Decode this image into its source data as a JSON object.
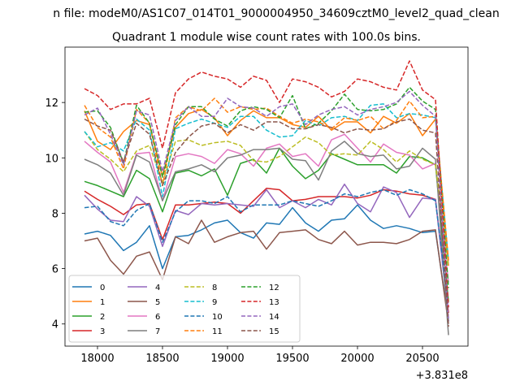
{
  "chart_data": {
    "type": "line",
    "suptitle": "n file: modeM0/AS1C07_014T01_9000004950_34609cztM0_level2_quad_clean",
    "title": "Quadrant 1 module wise count rates with 100.0s bins.",
    "xlabel": "",
    "ylabel": "",
    "x_offset_label": "+3.831e8",
    "xlim": [
      17750,
      20850
    ],
    "ylim": [
      3.2,
      14.0
    ],
    "xticks": [
      18000,
      18500,
      19000,
      19500,
      20000,
      20500
    ],
    "yticks": [
      4,
      6,
      8,
      10,
      12
    ],
    "legend_position": "lower-left",
    "legend_columns": 4,
    "x": [
      17900,
      18000,
      18100,
      18200,
      18300,
      18400,
      18500,
      18600,
      18700,
      18800,
      18900,
      19000,
      19100,
      19200,
      19300,
      19400,
      19500,
      19600,
      19700,
      19800,
      19900,
      20000,
      20100,
      20200,
      20300,
      20400,
      20500,
      20600,
      20700
    ],
    "series": [
      {
        "name": "0",
        "color": "#1f77b4",
        "dash": "solid",
        "values": [
          7.25,
          7.35,
          7.2,
          6.65,
          6.95,
          7.55,
          6.0,
          7.15,
          7.2,
          7.4,
          7.65,
          7.75,
          7.3,
          7.1,
          7.65,
          7.6,
          8.2,
          7.65,
          7.35,
          7.75,
          7.8,
          8.3,
          7.75,
          7.45,
          7.55,
          7.45,
          7.3,
          7.35,
          4.1
        ]
      },
      {
        "name": "1",
        "color": "#ff7f0e",
        "dash": "solid",
        "values": [
          11.7,
          10.6,
          10.3,
          10.95,
          11.35,
          11.2,
          9.35,
          11.1,
          11.6,
          11.75,
          11.45,
          10.8,
          11.35,
          11.7,
          11.45,
          11.45,
          11.2,
          11.1,
          11.5,
          11.0,
          11.3,
          11.3,
          10.9,
          11.5,
          11.25,
          11.6,
          10.8,
          11.4,
          6.1
        ]
      },
      {
        "name": "2",
        "color": "#2ca02c",
        "dash": "solid",
        "values": [
          9.15,
          9.0,
          8.8,
          8.6,
          9.55,
          9.25,
          8.05,
          9.45,
          9.55,
          9.35,
          9.6,
          8.65,
          9.8,
          9.95,
          9.45,
          10.35,
          9.7,
          9.25,
          9.55,
          10.15,
          9.95,
          9.75,
          9.75,
          9.75,
          9.45,
          10.05,
          10.0,
          9.75,
          4.8
        ]
      },
      {
        "name": "3",
        "color": "#d62728",
        "dash": "solid",
        "values": [
          8.8,
          8.5,
          8.25,
          7.95,
          8.3,
          8.35,
          7.05,
          8.3,
          8.3,
          8.35,
          8.4,
          8.35,
          8.0,
          8.45,
          8.9,
          8.85,
          8.45,
          8.5,
          8.6,
          8.6,
          8.6,
          8.55,
          8.65,
          8.85,
          8.8,
          8.7,
          8.65,
          8.5,
          4.4
        ]
      },
      {
        "name": "4",
        "color": "#9467bd",
        "dash": "solid",
        "values": [
          8.65,
          8.15,
          7.75,
          7.7,
          8.6,
          8.25,
          6.8,
          8.1,
          7.95,
          8.35,
          8.3,
          8.35,
          8.3,
          8.25,
          8.85,
          8.2,
          8.45,
          8.2,
          8.5,
          8.3,
          9.05,
          8.35,
          8.05,
          8.95,
          8.75,
          7.85,
          8.55,
          8.5,
          4.2
        ]
      },
      {
        "name": "5",
        "color": "#8c564b",
        "dash": "solid",
        "values": [
          7.0,
          7.1,
          6.3,
          5.8,
          6.45,
          6.6,
          5.6,
          7.15,
          6.9,
          7.75,
          6.95,
          7.15,
          7.3,
          7.35,
          6.7,
          7.3,
          7.35,
          7.4,
          7.05,
          6.9,
          7.35,
          6.85,
          6.95,
          6.95,
          6.9,
          7.05,
          7.35,
          7.4,
          4.0
        ]
      },
      {
        "name": "6",
        "color": "#e377c2",
        "dash": "solid",
        "values": [
          10.6,
          10.2,
          9.85,
          8.75,
          10.15,
          10.2,
          8.45,
          10.05,
          10.15,
          10.05,
          9.8,
          10.3,
          10.15,
          9.7,
          10.35,
          10.5,
          10.05,
          10.15,
          9.7,
          10.65,
          10.85,
          10.35,
          9.85,
          10.5,
          10.2,
          10.1,
          9.6,
          9.8,
          5.5
        ]
      },
      {
        "name": "7",
        "color": "#7f7f7f",
        "dash": "solid",
        "values": [
          9.95,
          9.75,
          9.45,
          8.65,
          10.1,
          9.85,
          8.45,
          9.5,
          9.6,
          9.75,
          9.5,
          10.0,
          10.1,
          10.3,
          10.3,
          10.35,
          9.95,
          9.9,
          9.2,
          10.25,
          10.6,
          10.15,
          10.05,
          10.1,
          9.6,
          9.7,
          10.35,
          9.95,
          3.6
        ]
      },
      {
        "name": "8",
        "color": "#bcbd22",
        "dash": "dashed",
        "values": [
          10.95,
          10.3,
          9.95,
          9.5,
          10.25,
          10.45,
          9.1,
          10.6,
          10.65,
          10.45,
          10.55,
          10.6,
          10.45,
          9.9,
          9.85,
          10.05,
          10.4,
          10.75,
          10.55,
          10.1,
          10.15,
          10.1,
          10.6,
          10.3,
          9.85,
          10.25,
          9.95,
          9.75,
          6.1
        ]
      },
      {
        "name": "9",
        "color": "#17becf",
        "dash": "dashed",
        "values": [
          10.95,
          10.4,
          10.55,
          10.25,
          11.4,
          11.0,
          8.6,
          11.05,
          11.25,
          11.4,
          11.25,
          11.1,
          11.5,
          11.5,
          11.0,
          10.75,
          10.8,
          11.35,
          11.15,
          11.45,
          11.5,
          11.35,
          11.9,
          11.95,
          11.45,
          11.6,
          11.55,
          11.45,
          6.3
        ]
      },
      {
        "name": "10",
        "color": "#1f77b4",
        "dash": "dashed",
        "values": [
          8.2,
          8.25,
          7.7,
          7.55,
          8.1,
          8.35,
          6.95,
          8.05,
          8.45,
          8.45,
          8.35,
          8.6,
          8.05,
          8.3,
          8.3,
          8.3,
          8.45,
          8.35,
          8.25,
          8.45,
          8.7,
          8.6,
          8.75,
          8.85,
          8.65,
          8.85,
          8.7,
          8.45,
          4.6
        ]
      },
      {
        "name": "11",
        "color": "#ff7f0e",
        "dash": "dashed",
        "values": [
          11.9,
          11.1,
          10.75,
          9.6,
          11.75,
          11.25,
          9.0,
          11.45,
          11.85,
          11.7,
          12.15,
          11.65,
          11.85,
          11.75,
          11.8,
          11.5,
          11.25,
          11.4,
          11.3,
          11.05,
          11.45,
          11.35,
          11.5,
          11.05,
          11.35,
          12.05,
          11.45,
          11.5,
          6.3
        ]
      },
      {
        "name": "12",
        "color": "#2ca02c",
        "dash": "dashed",
        "values": [
          11.65,
          11.7,
          11.1,
          9.8,
          11.9,
          11.25,
          9.3,
          11.2,
          11.85,
          11.85,
          11.4,
          11.15,
          11.7,
          11.85,
          11.75,
          11.45,
          12.25,
          11.05,
          11.25,
          11.7,
          12.3,
          11.75,
          11.7,
          11.75,
          11.95,
          12.55,
          12.05,
          11.75,
          5.3
        ]
      },
      {
        "name": "13",
        "color": "#d62728",
        "dash": "dashed",
        "values": [
          12.5,
          12.25,
          11.75,
          11.95,
          11.95,
          12.15,
          10.35,
          12.35,
          12.85,
          13.1,
          12.95,
          12.85,
          12.55,
          12.95,
          12.8,
          12.0,
          12.85,
          12.75,
          12.55,
          12.2,
          12.4,
          12.85,
          12.75,
          12.55,
          12.45,
          13.5,
          12.45,
          12.1,
          4.6
        ]
      },
      {
        "name": "14",
        "color": "#9467bd",
        "dash": "dashed",
        "values": [
          11.55,
          11.8,
          10.85,
          9.75,
          11.7,
          11.55,
          9.5,
          11.35,
          11.85,
          11.5,
          11.5,
          12.15,
          11.85,
          11.8,
          11.5,
          11.85,
          11.95,
          11.2,
          11.55,
          11.75,
          11.85,
          11.55,
          11.75,
          11.85,
          12.0,
          12.4,
          11.9,
          11.5,
          4.1
        ]
      },
      {
        "name": "15",
        "color": "#8c564b",
        "dash": "dashed",
        "values": [
          11.4,
          11.15,
          11.0,
          9.85,
          11.25,
          10.85,
          9.0,
          10.2,
          10.75,
          11.15,
          11.25,
          10.9,
          11.2,
          11.0,
          11.3,
          11.3,
          11.05,
          11.05,
          11.2,
          11.1,
          10.9,
          11.05,
          11.0,
          11.05,
          11.3,
          11.4,
          11.0,
          10.9,
          3.9
        ]
      }
    ]
  }
}
